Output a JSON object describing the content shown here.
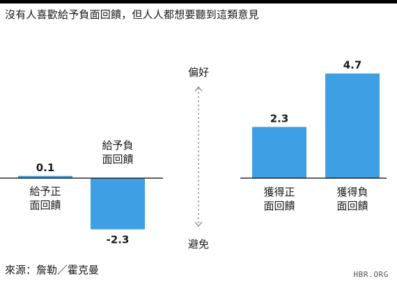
{
  "title": "沒有人喜歡給予負面回饋，但人人都想要聽到這類意見",
  "source": "來源：詹勒／霍克曼",
  "brand": "HBR.ORG",
  "colors": {
    "bar": "#3f9fe4",
    "axis": "#000000",
    "arrow": "#888888",
    "text": "#1a1a1a"
  },
  "chart_data": {
    "type": "bar",
    "ylim": [
      -3.2,
      5.4
    ],
    "scale_label_top": "偏好",
    "scale_label_bottom": "避免",
    "groups": [
      {
        "bars": [
          {
            "label": "給予正\n面回饋",
            "value": 0.1,
            "value_label": "0.1"
          },
          {
            "label": "給予負\n面回饋",
            "value": -2.3,
            "value_label": "-2.3"
          }
        ]
      },
      {
        "bars": [
          {
            "label": "獲得正\n面回饋",
            "value": 2.3,
            "value_label": "2.3"
          },
          {
            "label": "獲得負\n面回饋",
            "value": 4.7,
            "value_label": "4.7"
          }
        ]
      }
    ]
  }
}
